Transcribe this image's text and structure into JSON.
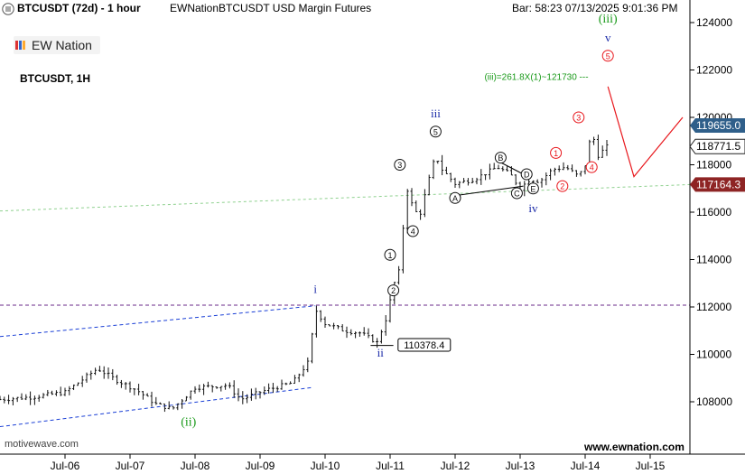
{
  "header": {
    "symbol_title": "BTCUSDT (72d) - 1 hour",
    "instrument": "EWNationBTCUSDT USD Margin Futures",
    "bar_info": "Bar: 58:23  07/13/2025 9:01:36 PM"
  },
  "logo": {
    "text": "EW Nation"
  },
  "symbol_label": "BTCUSDT, 1H",
  "watermark_left": "motivewave.com",
  "watermark_right": "www.ewnation.com",
  "icons": {
    "menu": "hamburger-icon",
    "logo": "ew-logo-icon"
  },
  "colors": {
    "bars": "#111111",
    "blue_channel": "#1a3fd6",
    "purple_level": "#6a2a8a",
    "green_trend": "#8fd18f",
    "projection": "#e8161b",
    "green_label": "#1a9a1a",
    "blue_label": "#1a2aa8",
    "price_tag_blue": "#2f5f8a",
    "price_tag_dark": "#222222",
    "price_tag_red": "#8e2424"
  },
  "chart_data": {
    "type": "ohlc",
    "title": "BTCUSDT (72d) - 1 hour",
    "x_ticks": [
      "Jul-06",
      "Jul-07",
      "Jul-08",
      "Jul-09",
      "Jul-10",
      "Jul-11",
      "Jul-12",
      "Jul-13",
      "Jul-14",
      "Jul-15"
    ],
    "y_ticks": [
      108000,
      110000,
      112000,
      114000,
      116000,
      118000,
      120000,
      122000,
      124000
    ],
    "ylim": [
      106000,
      125000
    ],
    "xlim": [
      -0.5,
      10.0
    ],
    "price_path": [
      [
        -0.5,
        108100
      ],
      [
        0.0,
        108200
      ],
      [
        0.5,
        108400
      ],
      [
        1.0,
        109400
      ],
      [
        1.3,
        108900
      ],
      [
        1.6,
        108500
      ],
      [
        1.9,
        107900
      ],
      [
        2.15,
        107700
      ],
      [
        2.5,
        108600
      ],
      [
        3.0,
        108700
      ],
      [
        3.2,
        108100
      ],
      [
        3.6,
        108500
      ],
      [
        4.0,
        108800
      ],
      [
        4.25,
        109700
      ],
      [
        4.35,
        111900
      ],
      [
        4.5,
        111300
      ],
      [
        4.8,
        111000
      ],
      [
        5.05,
        110900
      ],
      [
        5.3,
        110500
      ],
      [
        5.45,
        111600
      ],
      [
        5.55,
        112900
      ],
      [
        5.65,
        113600
      ],
      [
        5.75,
        117100
      ],
      [
        5.85,
        116200
      ],
      [
        5.95,
        115800
      ],
      [
        6.1,
        117400
      ],
      [
        6.2,
        118400
      ],
      [
        6.3,
        117800
      ],
      [
        6.5,
        117200
      ],
      [
        6.8,
        117400
      ],
      [
        7.15,
        117900
      ],
      [
        7.35,
        117600
      ],
      [
        7.5,
        117000
      ],
      [
        7.65,
        117400
      ],
      [
        7.8,
        117300
      ],
      [
        8.0,
        117800
      ],
      [
        8.2,
        117900
      ],
      [
        8.4,
        117500
      ],
      [
        8.5,
        118000
      ],
      [
        8.6,
        119400
      ],
      [
        8.7,
        118400
      ],
      [
        8.85,
        118800
      ]
    ],
    "last_price": 118771.5,
    "price_tags": [
      119655.0,
      118771.5,
      117164.3
    ],
    "projection": {
      "text": "(iii)=261.8X(1)~121730 ---",
      "target": 121730
    },
    "annotations": [
      {
        "text": "(iii)",
        "color": "green",
        "x": 8.85,
        "y": 124000
      },
      {
        "text": "v",
        "color": "blue",
        "x": 8.85,
        "y": 123200
      },
      {
        "text": "5",
        "style": "red-circle",
        "x": 8.85,
        "y": 122600
      },
      {
        "text": "3",
        "style": "red-circle",
        "x": 8.4,
        "y": 120000
      },
      {
        "text": "4",
        "style": "red-circle",
        "x": 8.6,
        "y": 117900
      },
      {
        "text": "2",
        "style": "red-circle",
        "x": 8.15,
        "y": 117100
      },
      {
        "text": "1",
        "style": "red-circle",
        "x": 8.05,
        "y": 118500
      },
      {
        "text": "iii",
        "color": "blue",
        "x": 6.2,
        "y": 120000
      },
      {
        "text": "5",
        "style": "black-circle",
        "x": 6.2,
        "y": 119400
      },
      {
        "text": "3",
        "style": "black-circle",
        "x": 5.65,
        "y": 118000
      },
      {
        "text": "1",
        "style": "black-circle",
        "x": 5.5,
        "y": 114200
      },
      {
        "text": "2",
        "style": "black-circle",
        "x": 5.55,
        "y": 112700
      },
      {
        "text": "4",
        "style": "black-circle",
        "x": 5.85,
        "y": 115200
      },
      {
        "text": "A",
        "style": "black-circle",
        "x": 6.5,
        "y": 116600
      },
      {
        "text": "B",
        "style": "black-circle",
        "x": 7.2,
        "y": 118300
      },
      {
        "text": "C",
        "style": "black-circle",
        "x": 7.45,
        "y": 116800
      },
      {
        "text": "D",
        "style": "black-circle",
        "x": 7.6,
        "y": 117600
      },
      {
        "text": "E",
        "style": "black-circle",
        "x": 7.7,
        "y": 117000
      },
      {
        "text": "iv",
        "color": "blue",
        "x": 7.7,
        "y": 116000
      },
      {
        "text": "i",
        "color": "blue",
        "x": 4.35,
        "y": 112600
      },
      {
        "text": "ii",
        "color": "blue",
        "x": 5.35,
        "y": 109900
      },
      {
        "text": "(ii)",
        "color": "green",
        "x": 2.4,
        "y": 107000
      },
      {
        "text": "110378.4",
        "style": "box",
        "x": 5.65,
        "y": 110400
      }
    ]
  }
}
